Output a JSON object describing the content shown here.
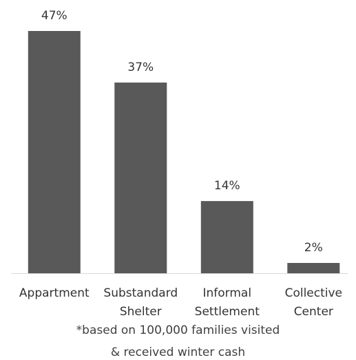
{
  "chart_data": {
    "type": "bar",
    "categories": [
      [
        "Appartment"
      ],
      [
        "Substandard",
        "Shelter"
      ],
      [
        "Informal",
        "Settlement"
      ],
      [
        "Collective",
        "Center"
      ]
    ],
    "values": [
      47,
      37,
      14,
      2
    ],
    "data_labels": [
      "47%",
      "37%",
      "14%",
      "2%"
    ],
    "unit": "%",
    "ylim": [
      0,
      47
    ],
    "grid": false,
    "legend": "none",
    "bar_color": "#595959",
    "axis_color": "#d9d9d9",
    "title": "",
    "xlabel": "",
    "ylabel": ""
  },
  "footnote": {
    "line1": "*based on 100,000 families visited",
    "line2": "& received winter cash"
  }
}
